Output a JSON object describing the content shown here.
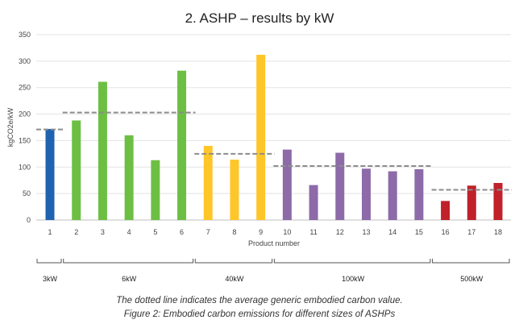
{
  "chart_data": {
    "type": "bar",
    "title": "2. ASHP – results by kW",
    "xlabel": "Product number",
    "ylabel": "kgCO2e/kW",
    "ylim": [
      0,
      350
    ],
    "yticks": [
      0,
      50,
      100,
      150,
      200,
      250,
      300,
      350
    ],
    "grid": true,
    "categories": [
      "1",
      "2",
      "3",
      "4",
      "5",
      "6",
      "7",
      "8",
      "9",
      "10",
      "11",
      "12",
      "13",
      "14",
      "15",
      "16",
      "17",
      "18"
    ],
    "values": [
      172,
      188,
      261,
      160,
      113,
      282,
      140,
      114,
      312,
      133,
      66,
      127,
      97,
      92,
      96,
      36,
      65,
      70
    ],
    "groups": [
      {
        "label": "3kW",
        "products": [
          "1"
        ],
        "color": "#1f62b0",
        "average": 171
      },
      {
        "label": "6kW",
        "products": [
          "2",
          "3",
          "4",
          "5",
          "6"
        ],
        "color": "#6dbf44",
        "average": 203
      },
      {
        "label": "40kW",
        "products": [
          "7",
          "8",
          "9"
        ],
        "color": "#ffc629",
        "average": 125
      },
      {
        "label": "100kW",
        "products": [
          "10",
          "11",
          "12",
          "13",
          "14",
          "15"
        ],
        "color": "#8d6aa8",
        "average": 102
      },
      {
        "label": "500kW",
        "products": [
          "16",
          "17",
          "18"
        ],
        "color": "#c0212a",
        "average": 57
      }
    ],
    "average_line_color": "#8c8c8c"
  },
  "captions": {
    "line1": "The dotted line indicates the average generic embodied carbon value.",
    "line2": "Figure 2: Embodied carbon emissions for different sizes of ASHPs"
  }
}
